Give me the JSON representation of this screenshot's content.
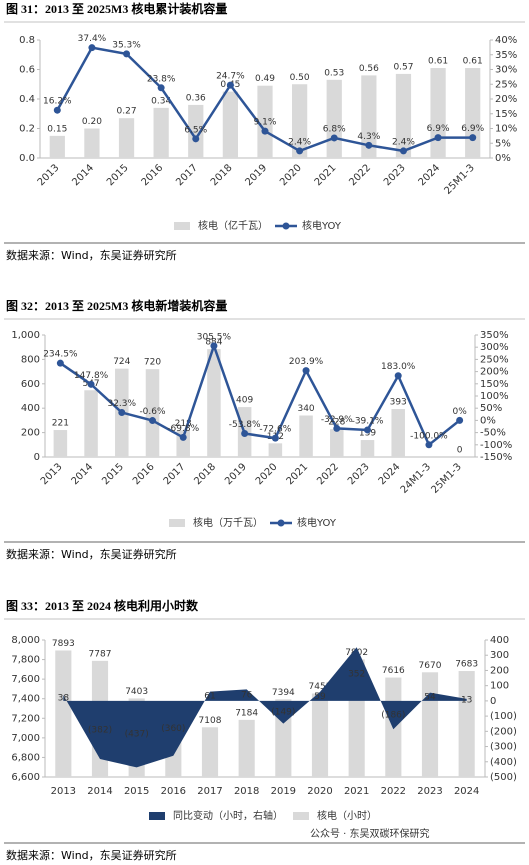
{
  "chart_data": [
    {
      "type": "bar_line",
      "title": "图 31：2013 至 2025M3 核电累计装机容量",
      "source": "数据来源：Wind，东吴证券研究所",
      "categories": [
        "2013",
        "2014",
        "2015",
        "2016",
        "2017",
        "2018",
        "2019",
        "2020",
        "2021",
        "2022",
        "2023",
        "2024",
        "25M1-3"
      ],
      "series": [
        {
          "name": "核电（亿千瓦）",
          "type": "bar",
          "color": "#d9d9d9",
          "values": [
            0.15,
            0.2,
            0.27,
            0.34,
            0.36,
            0.45,
            0.49,
            0.5,
            0.53,
            0.56,
            0.57,
            0.61,
            0.61
          ],
          "value_labels": [
            "0.15",
            "0.20",
            "0.27",
            "0.34",
            "0.36",
            "0.45",
            "0.49",
            "0.50",
            "0.53",
            "0.56",
            "0.57",
            "0.61",
            "0.61"
          ]
        },
        {
          "name": "核电YOY",
          "type": "line",
          "axis": "y2",
          "color": "#2e5597",
          "values": [
            16.2,
            37.4,
            35.3,
            23.8,
            6.5,
            24.7,
            9.1,
            2.4,
            6.8,
            4.3,
            2.4,
            6.9,
            6.9
          ],
          "value_labels": [
            "16.2%",
            "37.4%",
            "35.3%",
            "23.8%",
            "6.5%",
            "24.7%",
            "9.1%",
            "2.4%",
            "6.8%",
            "4.3%",
            "2.4%",
            "6.9%",
            "6.9%"
          ]
        }
      ],
      "ylim": [
        0,
        0.8
      ],
      "yticks": [
        {
          "value": 0,
          "label": "0.0"
        },
        0.2,
        0.4,
        0.6,
        0.8
      ],
      "y2lim": [
        0,
        40
      ],
      "y2ticks": [
        {
          "value": 0,
          "label": "0%"
        },
        {
          "value": 5,
          "label": "5%"
        },
        {
          "value": 10,
          "label": "10%"
        },
        {
          "value": 15,
          "label": "15%"
        },
        {
          "value": 20,
          "label": "20%"
        },
        {
          "value": 25,
          "label": "25%"
        },
        {
          "value": 30,
          "label": "30%"
        },
        {
          "value": 35,
          "label": "35%"
        },
        {
          "value": 40,
          "label": "40%"
        }
      ]
    },
    {
      "type": "bar_line",
      "title": "图 32：2013 至 2025M3 核电新增装机容量",
      "source": "数据来源：Wind，东吴证券研究所",
      "categories": [
        "2013",
        "2014",
        "2015",
        "2016",
        "2017",
        "2018",
        "2019",
        "2020",
        "2021",
        "2022",
        "2023",
        "2024",
        "24M1-3",
        "25M1-3"
      ],
      "series": [
        {
          "name": "核电（万千瓦）",
          "type": "bar",
          "color": "#d9d9d9",
          "values": [
            221,
            547,
            724,
            720,
            218,
            884,
            409,
            112,
            340,
            228,
            139,
            393,
            0,
            0
          ],
          "value_labels": [
            "221",
            "547",
            "724",
            "720",
            "218",
            "884",
            "409",
            "112",
            "340",
            "228",
            "139",
            "393",
            null,
            "0"
          ]
        },
        {
          "name": "核电YOY",
          "type": "line",
          "axis": "y2",
          "color": "#2e5597",
          "values": [
            234.5,
            147.8,
            32.3,
            -0.6,
            -69.8,
            305.5,
            -53.8,
            -72.6,
            203.9,
            -32.9,
            -39.1,
            183.0,
            -100.0,
            0
          ],
          "value_labels": [
            "234.5%",
            "147.8%",
            "32.3%",
            "-0.6%",
            "-69.8%",
            "305.5%",
            "-53.8%",
            "-72.6%",
            "203.9%",
            "-32.9%",
            "-39.1%",
            "183.0%",
            "-100.0%",
            "0%"
          ]
        }
      ],
      "ylim": [
        0,
        1000
      ],
      "yticks": [
        0,
        200,
        400,
        600,
        800,
        {
          "value": 1000,
          "label": "1,000"
        }
      ],
      "y2lim": [
        -150,
        350
      ],
      "y2ticks": [
        {
          "value": -150,
          "label": "-150%"
        },
        {
          "value": -100,
          "label": "-100%"
        },
        {
          "value": -50,
          "label": "-50%"
        },
        {
          "value": 0,
          "label": "0%"
        },
        {
          "value": 50,
          "label": "50%"
        },
        {
          "value": 100,
          "label": "100%"
        },
        {
          "value": 150,
          "label": "150%"
        },
        {
          "value": 200,
          "label": "200%"
        },
        {
          "value": 250,
          "label": "250%"
        },
        {
          "value": 300,
          "label": "300%"
        },
        {
          "value": 350,
          "label": "350%"
        }
      ]
    },
    {
      "type": "bar_area",
      "title": "图 33：2013 至 2024 核电利用小时数",
      "source": "数据来源：Wind，东吴证券研究所",
      "watermark": "公众号 · 东吴双碳环保研究",
      "categories": [
        "2013",
        "2014",
        "2015",
        "2016",
        "2017",
        "2018",
        "2019",
        "2020",
        "2021",
        "2022",
        "2023",
        "2024"
      ],
      "series": [
        {
          "name": "同比变动（小时，右轴）",
          "type": "area",
          "axis": "y2",
          "color": "#1f3e6e",
          "negative_label_color": "#e00000",
          "values": [
            38,
            -382,
            -437,
            -360,
            61,
            76,
            -149,
            59,
            352,
            -186,
            54,
            13
          ],
          "value_labels": [
            "38",
            "(382)",
            "(437)",
            "(360)",
            "61",
            "76",
            "(149)",
            "59",
            "352",
            "(186)",
            "54",
            "13"
          ]
        },
        {
          "name": "核电（小时）",
          "type": "bar",
          "color": "#d9d9d9",
          "values": [
            7893,
            7787,
            7403,
            7047,
            7108,
            7184,
            7394,
            7453,
            7802,
            7616,
            7670,
            7683
          ]
        }
      ],
      "ylim": [
        6600,
        8000
      ],
      "yticks": [
        {
          "value": 6600,
          "label": "6,600"
        },
        {
          "value": 6800,
          "label": "6,800"
        },
        {
          "value": 7000,
          "label": "7,000"
        },
        {
          "value": 7200,
          "label": "7,200"
        },
        {
          "value": 7400,
          "label": "7,400"
        },
        {
          "value": 7600,
          "label": "7,600"
        },
        {
          "value": 7800,
          "label": "7,800"
        },
        {
          "value": 8000,
          "label": "8,000"
        }
      ],
      "y2lim": [
        -500,
        400
      ],
      "y2ticks": [
        {
          "value": -500,
          "label": "(500)"
        },
        {
          "value": -400,
          "label": "(400)"
        },
        {
          "value": -300,
          "label": "(300)"
        },
        {
          "value": -200,
          "label": "(200)"
        },
        {
          "value": -100,
          "label": "(100)"
        },
        0,
        100,
        200,
        300,
        400
      ]
    }
  ]
}
